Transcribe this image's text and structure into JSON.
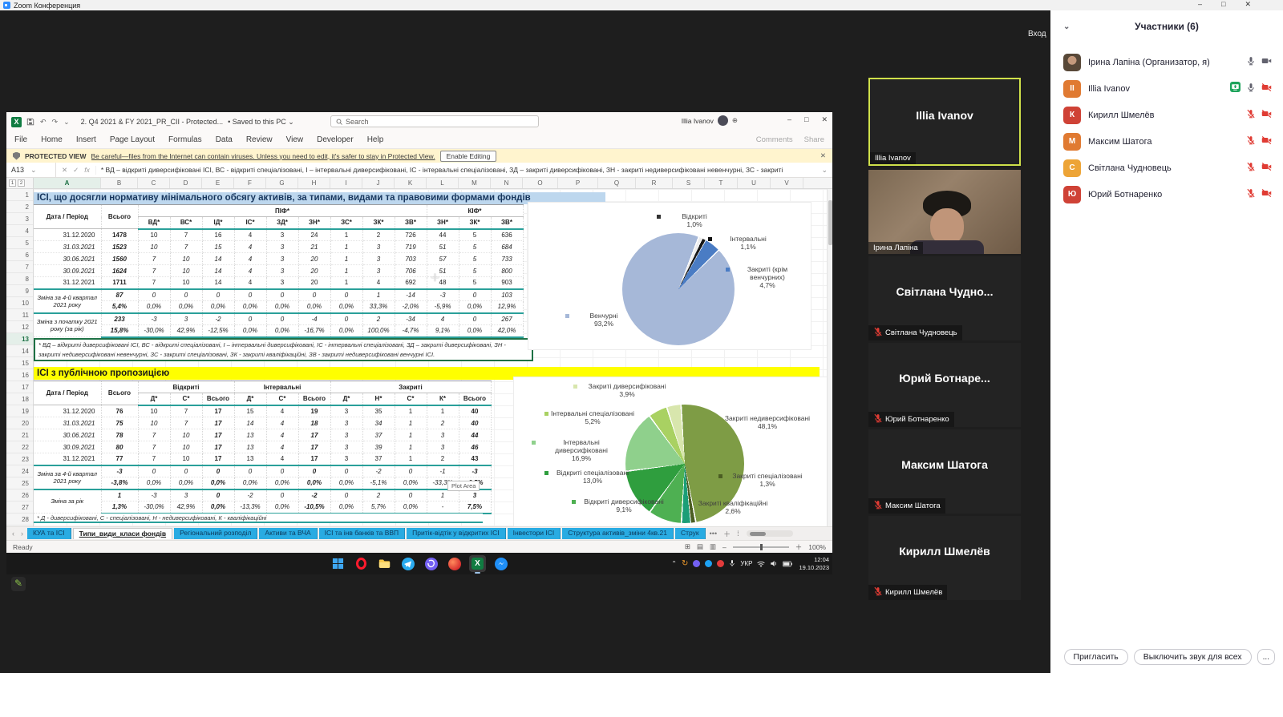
{
  "zoom_window": {
    "title": "Zoom Конференция",
    "login_button": "Вход"
  },
  "participants": {
    "header": "Участники (6)",
    "items": [
      {
        "name": "Ірина Лапіна (Организатор, я)",
        "avatar": "photo",
        "initials": "",
        "color": "",
        "sharing": false,
        "mic": "on",
        "camera": "on"
      },
      {
        "name": "Illia Ivanov",
        "avatar": "initials",
        "initials": "II",
        "color": "#e07a32",
        "sharing": true,
        "mic": "on",
        "camera": "off"
      },
      {
        "name": "Кирилл Шмелёв",
        "avatar": "initials",
        "initials": "К",
        "color": "#cf4236",
        "sharing": false,
        "mic": "muted",
        "camera": "off"
      },
      {
        "name": "Максим Шатога",
        "avatar": "initials",
        "initials": "М",
        "color": "#e07a32",
        "sharing": false,
        "mic": "muted",
        "camera": "off"
      },
      {
        "name": "Світлана Чудновець",
        "avatar": "initials",
        "initials": "С",
        "color": "#eda436",
        "sharing": false,
        "mic": "muted",
        "camera": "off"
      },
      {
        "name": "Юрий Ботнаренко",
        "avatar": "initials",
        "initials": "Ю",
        "color": "#cf4236",
        "sharing": false,
        "mic": "muted",
        "camera": "off"
      }
    ],
    "invite_button": "Пригласить",
    "mute_all_button": "Выключить звук для всех",
    "more_button": "..."
  },
  "video_tiles": [
    {
      "center_name": "Illia Ivanov",
      "label": "Illia Ivanov",
      "active": true,
      "video": false,
      "muted": false
    },
    {
      "center_name": "",
      "label": "Ірина Лапіна",
      "active": false,
      "video": true,
      "muted": false
    },
    {
      "center_name": "Світлана Чудно...",
      "label": "Світлана Чудновець",
      "active": false,
      "video": false,
      "muted": true
    },
    {
      "center_name": "Юрий Ботнаре...",
      "label": "Юрий Ботнаренко",
      "active": false,
      "video": false,
      "muted": true
    },
    {
      "center_name": "Максим Шатога",
      "label": "Максим Шатога",
      "active": false,
      "video": false,
      "muted": true
    },
    {
      "center_name": "Кирилл Шмелёв",
      "label": "Кирилл Шмелёв",
      "active": false,
      "video": false,
      "muted": true
    }
  ],
  "excel": {
    "titlebar": {
      "doc_title": "2. Q4 2021 & FY 2021_PR_CII  -  Protected...",
      "saved": "• Saved to this PC ⌄",
      "search": "Search",
      "user": "Illia Ivanov"
    },
    "menu": [
      "File",
      "Home",
      "Insert",
      "Page Layout",
      "Formulas",
      "Data",
      "Review",
      "View",
      "Developer",
      "Help"
    ],
    "comments_label": "Comments",
    "share_label": "Share",
    "protected": {
      "title": "PROTECTED VIEW",
      "message": "Be careful—files from the Internet can contain viruses. Unless you need to edit, it's safer to stay in Protected View.",
      "button": "Enable Editing"
    },
    "formula": {
      "cell_ref": "A13",
      "fx": "fx",
      "content": "* ВД – відкриті диверсифіковані ІСІ, ВС - відкриті спеціалізовані, І – інтервальні диверсифіковані, ІС - інтервальні спеціалізовані, ЗД – закриті диверсифіковані, ЗН - закриті недиверсифіковані невенчурні, ЗС - закриті"
    },
    "outline_levels": [
      "1",
      "2"
    ],
    "columns": [
      "A",
      "B",
      "C",
      "D",
      "E",
      "F",
      "G",
      "H",
      "I",
      "J",
      "K",
      "L",
      "M",
      "N",
      "O",
      "P",
      "Q",
      "R",
      "S",
      "T",
      "U",
      "V"
    ],
    "rows": [
      "1",
      "2",
      "3",
      "4",
      "5",
      "6",
      "7",
      "8",
      "9",
      "10",
      "11",
      "12",
      "13",
      "14",
      "15",
      "16",
      "17",
      "18",
      "19",
      "20",
      "21",
      "22",
      "23",
      "24",
      "25",
      "26",
      "27",
      "28"
    ],
    "selected_row": "13",
    "selected_col": "A",
    "sheet_tabs": [
      "КУА та ІСІ",
      "Типи_види_класи фондів",
      "Регіональний розподіл",
      "Активи та ВЧА",
      "ІСІ та інв банків та ВВП",
      "Притік-відтік у відкритих ІСІ",
      "Інвестори ІСІ",
      "Структура активів_зміни 4кв.21",
      "Струк"
    ],
    "active_tab_index": 1,
    "status": {
      "ready": "Ready",
      "zoom": "100%"
    },
    "plot_area_tooltip": "Plot Area"
  },
  "table1": {
    "title": "ІСІ, що досягли нормативу мінімального обсягу активів, за типами, видами та правовими формами фондів",
    "col_label": "Дата / Період",
    "col_total": "Всього",
    "groups": [
      {
        "label": "ПІФ*",
        "cols": [
          "ВД*",
          "ВС*",
          "ІД*",
          "ІС*",
          "ЗД*",
          "ЗН*",
          "ЗС*",
          "ЗК*",
          "ЗВ*"
        ]
      },
      {
        "label": "КІФ*",
        "cols": [
          "ЗН*",
          "ЗК*",
          "ЗВ*"
        ]
      }
    ],
    "rows": [
      {
        "label": "31.12.2020",
        "italic": false,
        "values": [
          "1478",
          "10",
          "7",
          "16",
          "4",
          "3",
          "24",
          "1",
          "2",
          "726",
          "44",
          "5",
          "636"
        ]
      },
      {
        "label": "31.03.2021",
        "italic": true,
        "values": [
          "1523",
          "10",
          "7",
          "15",
          "4",
          "3",
          "21",
          "1",
          "3",
          "719",
          "51",
          "5",
          "684"
        ]
      },
      {
        "label": "30.06.2021",
        "italic": true,
        "values": [
          "1560",
          "7",
          "10",
          "14",
          "4",
          "3",
          "20",
          "1",
          "3",
          "703",
          "57",
          "5",
          "733"
        ]
      },
      {
        "label": "30.09.2021",
        "italic": true,
        "values": [
          "1624",
          "7",
          "10",
          "14",
          "4",
          "3",
          "20",
          "1",
          "3",
          "706",
          "51",
          "5",
          "800"
        ]
      },
      {
        "label": "31.12.2021",
        "italic": false,
        "values": [
          "1711",
          "7",
          "10",
          "14",
          "4",
          "3",
          "20",
          "1",
          "4",
          "692",
          "48",
          "5",
          "903"
        ]
      }
    ],
    "summaries": [
      {
        "label": "Зміна за 4-й квартал 2021 року",
        "abs": [
          "87",
          "0",
          "0",
          "0",
          "0",
          "0",
          "0",
          "0",
          "1",
          "-14",
          "-3",
          "0",
          "103"
        ],
        "pct": [
          "5,4%",
          "0,0%",
          "0,0%",
          "0,0%",
          "0,0%",
          "0,0%",
          "0,0%",
          "0,0%",
          "33,3%",
          "-2,0%",
          "-5,9%",
          "0,0%",
          "12,9%"
        ]
      },
      {
        "label": "Зміна з початку 2021 року (за рік)",
        "abs": [
          "233",
          "-3",
          "3",
          "-2",
          "0",
          "0",
          "-4",
          "0",
          "2",
          "-34",
          "4",
          "0",
          "267"
        ],
        "pct": [
          "15,8%",
          "-30,0%",
          "42,9%",
          "-12,5%",
          "0,0%",
          "0,0%",
          "-16,7%",
          "0,0%",
          "100,0%",
          "-4,7%",
          "9,1%",
          "0,0%",
          "42,0%"
        ]
      }
    ],
    "footnote": "* ВД – відкриті диверсифіковані ІСІ, ВС - відкриті спеціалізовані, І – інтервальні диверсифіковані, ІС - інтервальні спеціалізовані, ЗД – закриті диверсифіковані, ЗН - закриті недиверсифіковані невенчурні, ЗС - закриті спеціалізовані, ЗК - закриті кваліфікаційні, ЗВ - закриті недиверсифіковані венчурні ІСІ."
  },
  "table2": {
    "title": "ІСІ з публічною пропозицією",
    "col_label": "Дата / Період",
    "col_total": "Всього",
    "groups": [
      {
        "label": "Відкриті",
        "cols": [
          "Д*",
          "С*",
          "Всього"
        ]
      },
      {
        "label": "Інтервальні",
        "cols": [
          "Д*",
          "С*",
          "Всього"
        ]
      },
      {
        "label": "Закриті",
        "cols": [
          "Д*",
          "Н*",
          "С*",
          "К*",
          "Всього"
        ]
      }
    ],
    "rows": [
      {
        "label": "31.12.2020",
        "italic": false,
        "values": [
          "76",
          "10",
          "7",
          "17",
          "15",
          "4",
          "19",
          "3",
          "35",
          "1",
          "1",
          "40"
        ]
      },
      {
        "label": "31.03.2021",
        "italic": true,
        "values": [
          "75",
          "10",
          "7",
          "17",
          "14",
          "4",
          "18",
          "3",
          "34",
          "1",
          "2",
          "40"
        ]
      },
      {
        "label": "30.06.2021",
        "italic": true,
        "values": [
          "78",
          "7",
          "10",
          "17",
          "13",
          "4",
          "17",
          "3",
          "37",
          "1",
          "3",
          "44"
        ]
      },
      {
        "label": "30.09.2021",
        "italic": true,
        "values": [
          "80",
          "7",
          "10",
          "17",
          "13",
          "4",
          "17",
          "3",
          "39",
          "1",
          "3",
          "46"
        ]
      },
      {
        "label": "31.12.2021",
        "italic": false,
        "values": [
          "77",
          "7",
          "10",
          "17",
          "13",
          "4",
          "17",
          "3",
          "37",
          "1",
          "2",
          "43"
        ]
      }
    ],
    "summaries": [
      {
        "label": "Зміна за 4-й квартал 2021 року",
        "abs": [
          "-3",
          "0",
          "0",
          "0",
          "0",
          "0",
          "0",
          "0",
          "-2",
          "0",
          "-1",
          "-3"
        ],
        "pct": [
          "-3,8%",
          "0,0%",
          "0,0%",
          "0,0%",
          "0,0%",
          "0,0%",
          "0,0%",
          "0,0%",
          "-5,1%",
          "0,0%",
          "-33,3%",
          "-6,5%"
        ]
      },
      {
        "label": "Зміна за рік",
        "abs": [
          "1",
          "-3",
          "3",
          "0",
          "-2",
          "0",
          "-2",
          "0",
          "2",
          "0",
          "1",
          "3"
        ],
        "pct": [
          "1,3%",
          "-30,0%",
          "42,9%",
          "0,0%",
          "-13,3%",
          "0,0%",
          "-10,5%",
          "0,0%",
          "5,7%",
          "0,0%",
          "-",
          "7,5%"
        ]
      }
    ],
    "footnote": "* Д - диверсифіковані, С - спеціалізовані, Н - недиверсифіковані, К - кваліфікаційні"
  },
  "chart_data": [
    {
      "type": "pie",
      "title": "",
      "legend_position": "callouts",
      "start_angle": 22,
      "slices": [
        {
          "label": "Відкриті",
          "value": 1.0,
          "display": "1,0%",
          "color": "#ededed"
        },
        {
          "label": "Інтервальні",
          "value": 1.1,
          "display": "1,1%",
          "color": "#181818"
        },
        {
          "label": "Закриті (крім венчурних)",
          "value": 4.7,
          "display": "4,7%",
          "color": "#4a7cc4"
        },
        {
          "label": "Венчурні",
          "value": 93.2,
          "display": "93,2%",
          "color": "#a6b8d8"
        }
      ]
    },
    {
      "type": "pie",
      "title": "",
      "legend_position": "callouts",
      "start_angle": 357,
      "slices": [
        {
          "label": "Закриті недиверсифіковані",
          "value": 48.1,
          "display": "48,1%",
          "color": "#7e9c45"
        },
        {
          "label": "Закриті спеціалізовані",
          "value": 1.3,
          "display": "1,3%",
          "color": "#4b5e23"
        },
        {
          "label": "Закриті кваліфікаційні",
          "value": 2.6,
          "display": "2,6%",
          "color": "#1b9e77"
        },
        {
          "label": "Відкриті диверсифіковані",
          "value": 9.1,
          "display": "9,1%",
          "color": "#4eb052"
        },
        {
          "label": "Відкриті спеціалізовані",
          "value": 13.0,
          "display": "13,0%",
          "color": "#2f9e3e"
        },
        {
          "label": "Інтервальні диверсифіковані",
          "value": 16.9,
          "display": "16,9%",
          "color": "#8fd08c"
        },
        {
          "label": "Інтервальні спеціалізовані",
          "value": 5.2,
          "display": "5,2%",
          "color": "#a9d162"
        },
        {
          "label": "Закриті диверсифіковані",
          "value": 3.9,
          "display": "3,9%",
          "color": "#d8e6ad"
        }
      ]
    }
  ],
  "taskbar": {
    "apps": [
      {
        "id": "start",
        "active": false
      },
      {
        "id": "opera",
        "active": false
      },
      {
        "id": "folder",
        "active": false
      },
      {
        "id": "telegram",
        "active": false
      },
      {
        "id": "viber",
        "active": false
      },
      {
        "id": "sphere",
        "active": false
      },
      {
        "id": "excel",
        "active": true
      },
      {
        "id": "messenger",
        "active": false
      }
    ],
    "tray_lang": "УКР",
    "time": "12:04",
    "date": "19.10.2023"
  }
}
